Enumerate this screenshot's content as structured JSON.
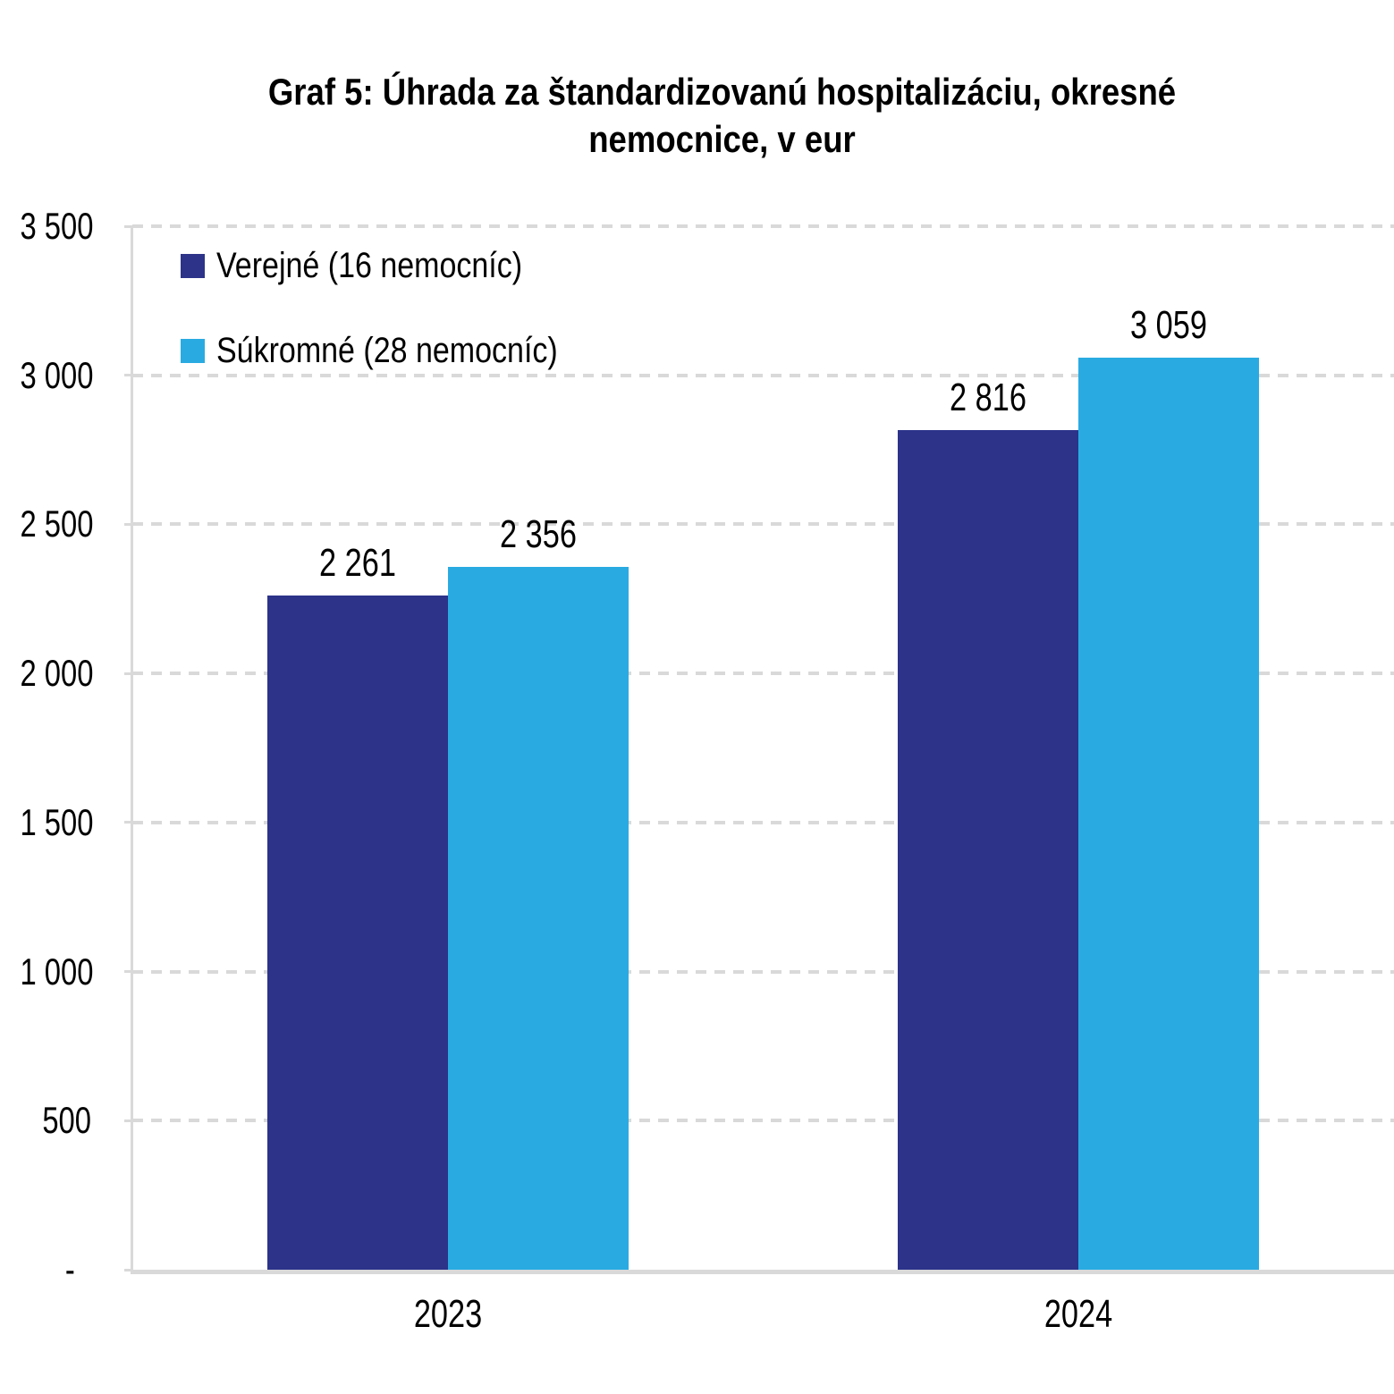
{
  "title_lines": [
    "Graf 5: Úhrada za štandardizovanú hospitalizáciu, okresné",
    "nemocnice, v eur"
  ],
  "chart_data": {
    "type": "bar",
    "title": "Graf 5: Úhrada za štandardizovanú hospitalizáciu, okresné nemocnice, v eur",
    "categories": [
      "2023",
      "2024"
    ],
    "series": [
      {
        "key": "verejne",
        "name": "Verejné (16 nemocníc)",
        "color": "#2C3389",
        "values": [
          2261,
          2816
        ],
        "value_labels": [
          "2 261",
          "2 816"
        ]
      },
      {
        "key": "sukromne",
        "name": "Súkromné (28 nemocníc)",
        "color": "#29ABE2",
        "values": [
          2356,
          3059
        ],
        "value_labels": [
          "2 356",
          "3 059"
        ]
      }
    ],
    "ylim": [
      0,
      3500
    ],
    "ytick_interval": 500,
    "yticks": [
      {
        "value": 3500,
        "label": "3 500"
      },
      {
        "value": 3000,
        "label": "3 000"
      },
      {
        "value": 2500,
        "label": "2 500"
      },
      {
        "value": 2000,
        "label": "2 000"
      },
      {
        "value": 1500,
        "label": "1 500"
      },
      {
        "value": 1000,
        "label": "1 000"
      },
      {
        "value": 500,
        "label": "500"
      },
      {
        "value": 0,
        "label": "-  "
      }
    ],
    "grid": "horizontal dashed",
    "legend_position": "top-left inside plot",
    "colors": {
      "grid": "#D9D9D9",
      "axis": "#D9D9D9",
      "text": "#000000",
      "background": "#FFFFFF"
    }
  }
}
